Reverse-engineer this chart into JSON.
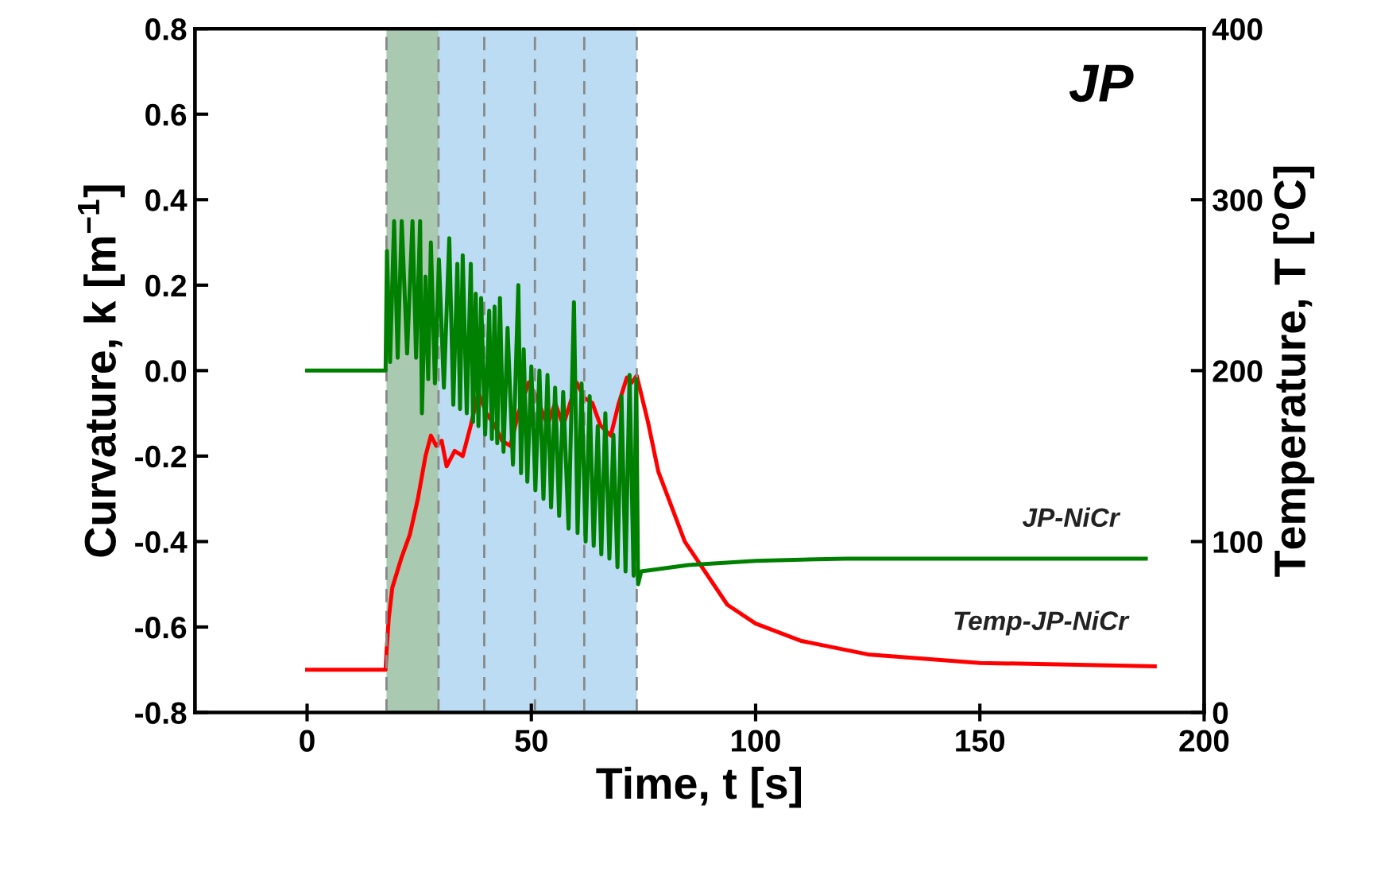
{
  "chart_data": {
    "type": "line",
    "xlabel": "Time, t [s]",
    "ylabel": "Curvature, k [m$^{−1}$]",
    "y2label": "Temperature, T [$^{o}$C]",
    "annotations": [
      "JP"
    ],
    "xlim": [
      -25,
      200
    ],
    "xticks": [
      0,
      50,
      100,
      150,
      200
    ],
    "ylim": [
      -0.8,
      0.8
    ],
    "yticks": [
      {
        "value": -0.8,
        "label": "-0.8"
      },
      {
        "value": -0.6,
        "label": "-0.6"
      },
      {
        "value": -0.4,
        "label": "-0.4"
      },
      {
        "value": -0.2,
        "label": "-0.2"
      },
      {
        "value": 0,
        "label": "0.0"
      },
      {
        "value": 0.2,
        "label": "0.2"
      },
      {
        "value": 0.4,
        "label": "0.4"
      },
      {
        "value": 0.6,
        "label": "0.6"
      },
      {
        "value": 0.8,
        "label": "0.8"
      }
    ],
    "y2lim": [
      0,
      400
    ],
    "y2ticks": [
      0,
      100,
      200,
      300,
      400
    ],
    "grid": false,
    "legend": false,
    "marker": "none",
    "line_style": "solid",
    "bands": [
      {
        "axis": "x",
        "from": 17.7,
        "to": 29.3,
        "color": "#a9c9b0"
      },
      {
        "axis": "x",
        "from": 29.3,
        "to": 73.5,
        "color": "#bcdcf3"
      }
    ],
    "ref_lines": [
      {
        "axis": "x",
        "value": 17.7,
        "color": "#888888",
        "line_style": "dashed"
      },
      {
        "axis": "x",
        "value": 29.3,
        "color": "#888888",
        "line_style": "dashed"
      },
      {
        "axis": "x",
        "value": 39.5,
        "color": "#888888",
        "line_style": "dashed"
      },
      {
        "axis": "x",
        "value": 50.8,
        "color": "#888888",
        "line_style": "dashed"
      },
      {
        "axis": "x",
        "value": 61.8,
        "color": "#888888",
        "line_style": "dashed"
      },
      {
        "axis": "x",
        "value": 73.5,
        "color": "#888888",
        "line_style": "dashed"
      }
    ],
    "series": [
      {
        "name": "JP-NiCr",
        "color": "#008000",
        "x": [
          0,
          17.5,
          17.8,
          18.5,
          19.4,
          20.2,
          21.1,
          22.3,
          23.5,
          24.3,
          25.2,
          25.6,
          26.4,
          27.0,
          27.6,
          28.5,
          29.4,
          30.5,
          31.7,
          32.6,
          33.5,
          34.1,
          34.7,
          35.6,
          36.5,
          37.0,
          37.6,
          38.2,
          38.8,
          39.7,
          40.6,
          41.2,
          41.8,
          42.4,
          43.0,
          43.8,
          44.7,
          45.9,
          47.1,
          47.7,
          48.3,
          49.1,
          50.0,
          50.9,
          51.8,
          52.7,
          53.6,
          54.4,
          55.3,
          56.2,
          57.1,
          58.3,
          59.5,
          60.3,
          61.2,
          62.1,
          63.0,
          63.9,
          64.8,
          65.6,
          66.5,
          67.4,
          68.3,
          69.2,
          70.1,
          71.0,
          71.9,
          72.8,
          73.4,
          73.8,
          74.5,
          85,
          100,
          120,
          150,
          187
        ],
        "values": [
          0.0,
          0.0,
          0.28,
          0.02,
          0.35,
          0.03,
          0.35,
          0.04,
          0.35,
          0.03,
          0.35,
          -0.1,
          0.22,
          -0.02,
          0.3,
          -0.03,
          0.26,
          -0.04,
          0.31,
          -0.08,
          0.25,
          -0.09,
          0.27,
          -0.1,
          0.25,
          -0.12,
          0.18,
          -0.13,
          0.17,
          -0.15,
          0.14,
          -0.16,
          0.15,
          -0.17,
          0.17,
          -0.19,
          0.1,
          -0.22,
          0.2,
          -0.24,
          0.05,
          -0.26,
          0.01,
          -0.28,
          0.0,
          -0.3,
          -0.01,
          -0.32,
          -0.04,
          -0.34,
          -0.05,
          -0.37,
          0.16,
          -0.38,
          -0.03,
          -0.4,
          -0.06,
          -0.41,
          -0.13,
          -0.43,
          -0.1,
          -0.44,
          -0.15,
          -0.46,
          -0.06,
          -0.47,
          -0.01,
          -0.48,
          -0.02,
          -0.5,
          -0.47,
          -0.455,
          -0.445,
          -0.44,
          -0.44,
          -0.44
        ]
      },
      {
        "name": "Temp-JP-NiCr",
        "color": "#ff0000",
        "axis": "y2",
        "x": [
          0,
          17.5,
          17.7,
          18.2,
          19.0,
          21.1,
          22.9,
          24.7,
          26.4,
          27.6,
          28.8,
          30.0,
          31.1,
          32.9,
          34.7,
          36.5,
          38.2,
          40.0,
          41.8,
          43.5,
          45.3,
          47.1,
          49.4,
          51.2,
          53.6,
          55.3,
          57.1,
          60.1,
          61.8,
          63.6,
          65.4,
          67.7,
          69.5,
          71.3,
          72.4,
          73.5,
          76,
          78.3,
          84.2,
          93.7,
          100,
          110,
          125,
          150,
          189
        ],
        "values": [
          25,
          25,
          35,
          55,
          73,
          91,
          104,
          125,
          150,
          162,
          156,
          159,
          144,
          153,
          150,
          168,
          187,
          175,
          168,
          159,
          156,
          175,
          193,
          184,
          168,
          181,
          168,
          193,
          184,
          181,
          168,
          162,
          181,
          196,
          193,
          197,
          170,
          141,
          100,
          63,
          52,
          42,
          34,
          29,
          27
        ]
      }
    ]
  }
}
